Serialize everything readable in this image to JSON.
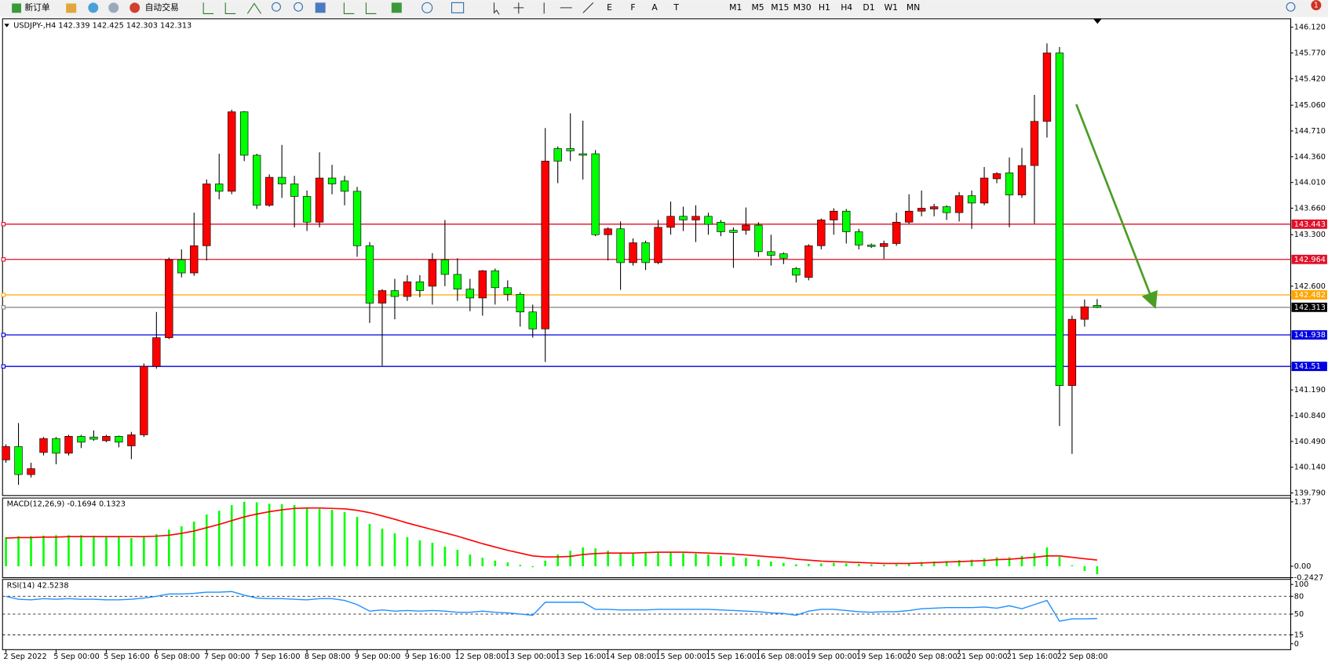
{
  "toolbar": {
    "buttons": [
      "新订单",
      "自动交易"
    ],
    "timeframes": [
      "M1",
      "M5",
      "M15",
      "M30",
      "H1",
      "H4",
      "D1",
      "W1",
      "MN"
    ],
    "badge": "1"
  },
  "chart_data": [
    {
      "type": "candlestick",
      "title": "USDJPY-,H4 142.339 142.425 142.303 142.313",
      "categories": [
        "2 Sep 2022",
        null,
        null,
        null,
        "5 Sep 00:00",
        null,
        null,
        null,
        "5 Sep 16:00",
        null,
        null,
        null,
        "6 Sep 08:00",
        null,
        null,
        null,
        "7 Sep 00:00",
        null,
        null,
        null,
        "7 Sep 16:00",
        null,
        null,
        null,
        "8 Sep 08:00",
        null,
        null,
        null,
        "9 Sep 00:00",
        null,
        null,
        null,
        "9 Sep 16:00",
        null,
        null,
        null,
        "12 Sep 08:00",
        null,
        null,
        null,
        "13 Sep 00:00",
        null,
        null,
        null,
        "13 Sep 16:00",
        null,
        null,
        null,
        "14 Sep 08:00",
        null,
        null,
        null,
        "15 Sep 00:00",
        null,
        null,
        null,
        "15 Sep 16:00",
        null,
        null,
        null,
        "16 Sep 08:00",
        null,
        null,
        null,
        "19 Sep 00:00",
        null,
        null,
        null,
        "19 Sep 16:00",
        null,
        null,
        null,
        "20 Sep 08:00",
        null,
        null,
        null,
        "21 Sep 00:00",
        null,
        null,
        null,
        "21 Sep 16:00",
        null,
        null,
        null,
        "22 Sep 08:00",
        null,
        null,
        null
      ],
      "open": [
        140.24,
        140.42,
        140.04,
        140.34,
        140.53,
        140.33,
        140.56,
        140.55,
        140.5,
        140.56,
        140.43,
        140.58,
        141.51,
        141.9,
        142.96,
        142.78,
        143.15,
        143.99,
        143.89,
        144.97,
        144.38,
        143.7,
        144.08,
        143.99,
        143.82,
        143.47,
        144.07,
        144.03,
        143.89,
        143.15,
        142.37,
        142.54,
        142.46,
        142.66,
        142.6,
        142.96,
        142.76,
        142.56,
        142.44,
        142.81,
        142.58,
        142.49,
        142.25,
        142.02,
        144.47,
        144.47,
        144.4,
        144.4,
        143.3,
        143.38,
        142.92,
        143.19,
        142.92,
        143.4,
        143.55,
        143.5,
        143.55,
        143.47,
        143.36,
        143.36,
        143.43,
        143.07,
        143.04,
        142.84,
        142.72,
        143.15,
        143.5,
        143.62,
        143.34,
        143.16,
        143.14,
        143.18,
        143.47,
        143.62,
        143.65,
        143.68,
        143.6,
        143.83,
        143.73,
        144.06,
        144.14,
        143.84,
        144.24,
        144.84,
        145.77,
        141.25,
        142.15,
        142.339
      ],
      "high": [
        140.45,
        140.74,
        140.2,
        140.55,
        140.55,
        140.58,
        140.58,
        140.64,
        140.58,
        140.57,
        140.62,
        141.55,
        142.25,
        142.99,
        143.1,
        143.6,
        144.05,
        144.4,
        145.0,
        144.98,
        144.4,
        144.12,
        144.52,
        144.1,
        143.9,
        144.42,
        144.25,
        144.1,
        143.95,
        143.2,
        142.56,
        142.7,
        142.75,
        142.75,
        143.05,
        143.5,
        142.98,
        142.7,
        142.82,
        142.84,
        142.68,
        142.52,
        142.35,
        144.75,
        144.5,
        144.95,
        144.85,
        144.45,
        143.4,
        143.48,
        143.25,
        143.22,
        143.5,
        143.75,
        143.68,
        143.7,
        143.6,
        143.5,
        143.4,
        143.67,
        143.47,
        143.3,
        143.06,
        142.86,
        143.17,
        143.52,
        143.66,
        143.65,
        143.38,
        143.18,
        143.22,
        143.6,
        143.85,
        143.9,
        143.72,
        143.7,
        143.88,
        143.9,
        144.22,
        144.15,
        144.35,
        144.48,
        145.2,
        145.9,
        145.85,
        142.2,
        142.42,
        142.425
      ],
      "low": [
        140.2,
        139.9,
        140.0,
        140.3,
        140.18,
        140.3,
        140.4,
        140.5,
        140.48,
        140.41,
        140.25,
        140.55,
        141.48,
        141.88,
        142.72,
        142.74,
        142.95,
        143.78,
        143.85,
        144.3,
        143.65,
        143.68,
        143.8,
        143.4,
        143.35,
        143.4,
        143.85,
        143.7,
        143.0,
        142.1,
        141.52,
        142.15,
        142.4,
        142.45,
        142.35,
        142.6,
        142.4,
        142.26,
        142.2,
        142.35,
        142.4,
        142.05,
        141.9,
        141.57,
        144.0,
        144.3,
        144.05,
        143.28,
        142.95,
        142.55,
        142.88,
        142.82,
        142.9,
        143.3,
        143.35,
        143.2,
        143.3,
        143.28,
        142.85,
        143.3,
        143.0,
        142.88,
        142.9,
        142.65,
        142.68,
        143.1,
        143.3,
        143.18,
        143.1,
        143.12,
        142.97,
        143.15,
        143.45,
        143.55,
        143.55,
        143.5,
        143.48,
        143.38,
        143.7,
        144.0,
        143.4,
        143.8,
        143.45,
        144.62,
        140.7,
        140.32,
        142.05,
        142.303
      ],
      "close": [
        140.42,
        140.04,
        140.12,
        140.53,
        140.33,
        140.56,
        140.48,
        140.52,
        140.56,
        140.48,
        140.58,
        141.51,
        141.9,
        142.96,
        142.78,
        143.15,
        143.99,
        143.89,
        144.97,
        144.38,
        143.7,
        144.08,
        143.99,
        143.82,
        143.47,
        144.07,
        143.99,
        143.89,
        143.15,
        142.37,
        142.54,
        142.46,
        142.66,
        142.54,
        142.96,
        142.76,
        142.56,
        142.44,
        142.81,
        142.58,
        142.49,
        142.25,
        142.02,
        144.3,
        144.3,
        144.44,
        144.38,
        143.3,
        143.38,
        142.92,
        143.19,
        142.92,
        143.4,
        143.55,
        143.5,
        143.55,
        143.44,
        143.34,
        143.33,
        143.43,
        143.07,
        143.02,
        142.98,
        142.75,
        143.15,
        143.5,
        143.62,
        143.34,
        143.16,
        143.14,
        143.18,
        143.47,
        143.62,
        143.66,
        143.68,
        143.6,
        143.83,
        143.73,
        144.07,
        144.13,
        143.84,
        144.24,
        144.84,
        145.77,
        141.25,
        142.15,
        142.32,
        142.313
      ],
      "up_color": "#ff0000",
      "down_color": "#00ff00",
      "ylim": [
        139.755,
        146.235
      ],
      "yticks": [
        {
          "value": 146.12,
          "label": "146.120"
        },
        {
          "value": 145.77,
          "label": "145.770"
        },
        {
          "value": 145.42,
          "label": "145.420"
        },
        {
          "value": 145.06,
          "label": "145.060"
        },
        {
          "value": 144.71,
          "label": "144.710"
        },
        {
          "value": 144.36,
          "label": "144.360"
        },
        {
          "value": 144.01,
          "label": "144.010"
        },
        {
          "value": 143.66,
          "label": "143.660"
        },
        {
          "value": 143.3,
          "label": "143.300"
        },
        {
          "value": 142.6,
          "label": "142.600"
        },
        {
          "value": 141.19,
          "label": "141.190"
        },
        {
          "value": 140.84,
          "label": "140.840"
        },
        {
          "value": 140.49,
          "label": "140.490"
        },
        {
          "value": 140.14,
          "label": "140.140"
        },
        {
          "value": 139.79,
          "label": "139.790"
        }
      ],
      "lines": [
        {
          "value": 143.443,
          "color": "#e0102a"
        },
        {
          "value": 142.964,
          "color": "#e0102a"
        },
        {
          "value": 142.482,
          "color": "#ffa500"
        },
        {
          "value": 142.313,
          "color": "#808080"
        },
        {
          "value": 141.938,
          "color": "#0000e0"
        },
        {
          "value": 141.51,
          "color": "#0000e0"
        }
      ]
    },
    {
      "type": "macd",
      "title": "MACD(12,26,9) -0.1694 0.1323",
      "histogram": {
        "color": "#00ff00",
        "values": [
          0.62,
          0.64,
          0.64,
          0.65,
          0.66,
          0.66,
          0.66,
          0.65,
          0.63,
          0.62,
          0.6,
          0.63,
          0.68,
          0.78,
          0.85,
          0.95,
          1.1,
          1.18,
          1.3,
          1.37,
          1.36,
          1.33,
          1.32,
          1.3,
          1.25,
          1.22,
          1.2,
          1.15,
          1.05,
          0.9,
          0.8,
          0.7,
          0.62,
          0.55,
          0.5,
          0.42,
          0.35,
          0.25,
          0.18,
          0.12,
          0.08,
          0.03,
          -0.02,
          0.12,
          0.25,
          0.33,
          0.4,
          0.38,
          0.33,
          0.29,
          0.28,
          0.28,
          0.29,
          0.3,
          0.28,
          0.27,
          0.25,
          0.22,
          0.2,
          0.18,
          0.14,
          0.1,
          0.07,
          0.04,
          0.05,
          0.06,
          0.07,
          0.06,
          0.05,
          0.04,
          0.03,
          0.04,
          0.07,
          0.09,
          0.1,
          0.11,
          0.13,
          0.14,
          0.17,
          0.19,
          0.19,
          0.22,
          0.28,
          0.4,
          0.2,
          0.02,
          -0.1,
          -0.1694
        ]
      },
      "signal": {
        "color": "#ff0000",
        "values": [
          0.6,
          0.61,
          0.61,
          0.62,
          0.62,
          0.63,
          0.63,
          0.63,
          0.63,
          0.63,
          0.63,
          0.63,
          0.64,
          0.66,
          0.7,
          0.75,
          0.82,
          0.89,
          0.97,
          1.05,
          1.11,
          1.16,
          1.2,
          1.23,
          1.24,
          1.24,
          1.23,
          1.22,
          1.19,
          1.14,
          1.07,
          1.0,
          0.92,
          0.85,
          0.78,
          0.71,
          0.64,
          0.56,
          0.48,
          0.41,
          0.34,
          0.28,
          0.22,
          0.2,
          0.2,
          0.21,
          0.25,
          0.27,
          0.28,
          0.28,
          0.28,
          0.29,
          0.3,
          0.3,
          0.3,
          0.29,
          0.28,
          0.27,
          0.26,
          0.24,
          0.22,
          0.2,
          0.18,
          0.15,
          0.13,
          0.11,
          0.1,
          0.09,
          0.08,
          0.07,
          0.06,
          0.06,
          0.06,
          0.07,
          0.08,
          0.09,
          0.1,
          0.11,
          0.12,
          0.14,
          0.15,
          0.17,
          0.19,
          0.22,
          0.22,
          0.19,
          0.16,
          0.1323
        ]
      },
      "ylim": [
        -0.2427,
        1.45
      ],
      "yticks": [
        1.37,
        {
          "value": 0,
          "label": "0.00"
        },
        -0.2427
      ]
    },
    {
      "type": "rsi",
      "title": "RSI(14) 42.5238",
      "color": "#1e90ff",
      "values": [
        80,
        75,
        74,
        76,
        75,
        76,
        75,
        75,
        74,
        74,
        75,
        77,
        80,
        84,
        84,
        85,
        87,
        87,
        88,
        82,
        77,
        76,
        76,
        75,
        74,
        76,
        76,
        73,
        66,
        55,
        57,
        55,
        56,
        55,
        56,
        55,
        53,
        53,
        55,
        53,
        52,
        50,
        48,
        70,
        70,
        70,
        70,
        58,
        58,
        57,
        57,
        57,
        58,
        58,
        58,
        58,
        58,
        57,
        56,
        55,
        54,
        52,
        51,
        48,
        55,
        58,
        58,
        56,
        54,
        53,
        54,
        54,
        56,
        59,
        60,
        61,
        61,
        61,
        62,
        60,
        64,
        59,
        66,
        73,
        38,
        42,
        42,
        42.5238
      ],
      "ylim": [
        0,
        100
      ],
      "yticks": [
        100,
        80,
        50,
        15,
        0
      ]
    }
  ]
}
